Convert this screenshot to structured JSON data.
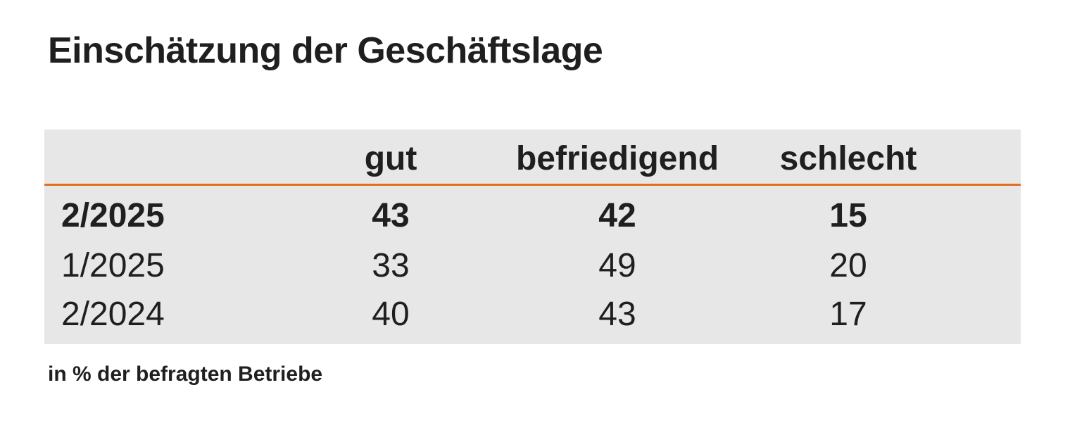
{
  "title": "Einschätzung der Geschäftslage",
  "table": {
    "columns": [
      "gut",
      "befriedigend",
      "schlecht"
    ],
    "rows": [
      {
        "label": "2/2025",
        "values": [
          "43",
          "42",
          "15"
        ],
        "bold": true
      },
      {
        "label": "1/2025",
        "values": [
          "33",
          "49",
          "20"
        ],
        "bold": false
      },
      {
        "label": "2/2024",
        "values": [
          "40",
          "43",
          "17"
        ],
        "bold": false
      }
    ]
  },
  "footnote": "in % der befragten Betriebe",
  "colors": {
    "table_background": "#e7e7e7",
    "header_rule": "#e36f1e",
    "text": "#1f1f1f"
  }
}
